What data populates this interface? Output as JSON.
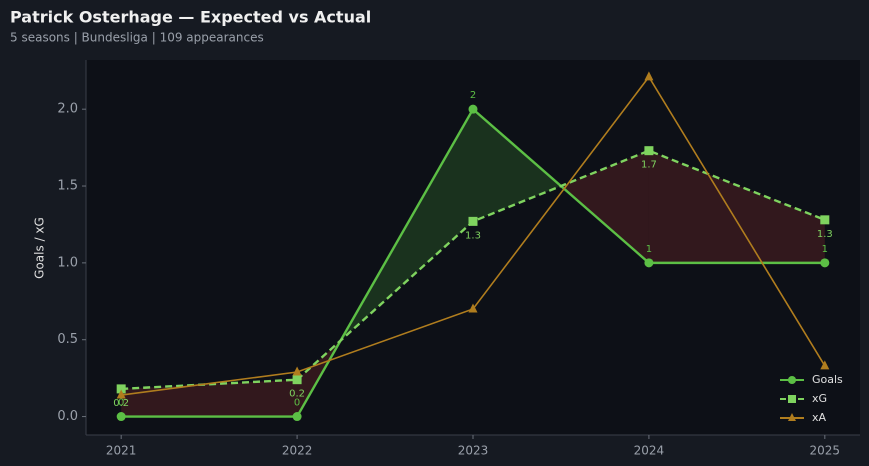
{
  "chart_data": {
    "type": "line",
    "title": "Patrick Osterhage — Expected vs Actual",
    "subtitle": "5 seasons | Bundesliga | 109 appearances",
    "y_label": "Goals / xG",
    "x": [
      2021,
      2022,
      2023,
      2024,
      2025
    ],
    "xlim": [
      2020.8,
      2025.2
    ],
    "xticks": [
      2021,
      2022,
      2023,
      2024,
      2025
    ],
    "ylim": [
      -0.12,
      2.32
    ],
    "yticks": [
      {
        "value": 0,
        "label": "0.0"
      },
      0.5,
      {
        "value": 1,
        "label": "1.0"
      },
      1.5,
      {
        "value": 2,
        "label": "2.0"
      }
    ],
    "legend": "lower right",
    "series": [
      {
        "name": "Goals",
        "color": "#5cbf45",
        "marker": "circle",
        "dash": false,
        "values": [
          0,
          0,
          2,
          1,
          1
        ]
      },
      {
        "name": "xG",
        "color": "#7fd35f",
        "marker": "square",
        "dash": true,
        "values": [
          0.18,
          0.24,
          1.27,
          1.73,
          1.28
        ],
        "value_labels": [
          "0.2",
          "0.2",
          "1.3",
          "1.7",
          "1.3"
        ]
      },
      {
        "name": "xA",
        "color": "#b07d1e",
        "marker": "triangle",
        "dash": false,
        "values": [
          0.14,
          0.29,
          0.7,
          2.21,
          0.33
        ]
      }
    ]
  }
}
